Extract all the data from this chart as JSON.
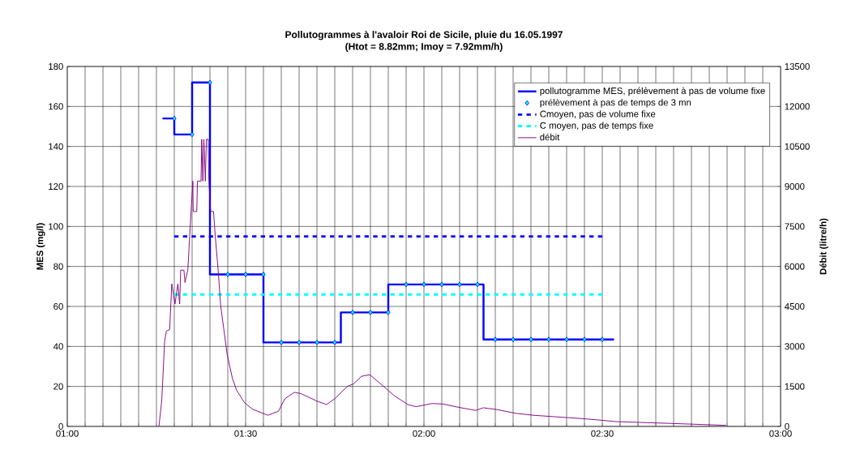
{
  "chart_data": {
    "type": "line",
    "title": "Pollutogrammes à l'avaloir Roi de Sicile, pluie du 16.05.1997",
    "subtitle": "(Htot = 8.82mm; Imoy = 7.92mm/h)",
    "ylabel": "MES (mg/l)",
    "y2label": "Débit (litre/h)",
    "xlim": [
      1,
      3
    ],
    "ylim": [
      0,
      180
    ],
    "y2lim": [
      0,
      13500
    ],
    "xticks": [
      {
        "value": 1,
        "label": "01:00"
      },
      {
        "value": 1.05,
        "label": null
      },
      {
        "value": 1.1,
        "label": null
      },
      {
        "value": 1.15,
        "label": null
      },
      {
        "value": 1.2,
        "label": null
      },
      {
        "value": 1.25,
        "label": null
      },
      {
        "value": 1.3,
        "label": null
      },
      {
        "value": 1.35,
        "label": null
      },
      {
        "value": 1.4,
        "label": null
      },
      {
        "value": 1.45,
        "label": null
      },
      {
        "value": 1.5,
        "label": "01:30"
      },
      {
        "value": 1.55,
        "label": null
      },
      {
        "value": 1.6,
        "label": null
      },
      {
        "value": 1.65,
        "label": null
      },
      {
        "value": 1.7,
        "label": null
      },
      {
        "value": 1.75,
        "label": null
      },
      {
        "value": 1.8,
        "label": null
      },
      {
        "value": 1.85,
        "label": null
      },
      {
        "value": 1.9,
        "label": null
      },
      {
        "value": 1.95,
        "label": null
      },
      {
        "value": 2,
        "label": "02:00"
      },
      {
        "value": 2.05,
        "label": null
      },
      {
        "value": 2.1,
        "label": null
      },
      {
        "value": 2.15,
        "label": null
      },
      {
        "value": 2.2,
        "label": null
      },
      {
        "value": 2.25,
        "label": null
      },
      {
        "value": 2.3,
        "label": null
      },
      {
        "value": 2.35,
        "label": null
      },
      {
        "value": 2.4,
        "label": null
      },
      {
        "value": 2.45,
        "label": null
      },
      {
        "value": 2.5,
        "label": "02:30"
      },
      {
        "value": 2.55,
        "label": null
      },
      {
        "value": 2.6,
        "label": null
      },
      {
        "value": 2.65,
        "label": null
      },
      {
        "value": 2.7,
        "label": null
      },
      {
        "value": 2.75,
        "label": null
      },
      {
        "value": 2.8,
        "label": null
      },
      {
        "value": 2.85,
        "label": null
      },
      {
        "value": 2.9,
        "label": null
      },
      {
        "value": 2.95,
        "label": null
      },
      {
        "value": 3,
        "label": "03:00"
      }
    ],
    "yticks": [
      0,
      20,
      40,
      60,
      80,
      100,
      120,
      140,
      160,
      180
    ],
    "y2ticks": [
      0,
      1500,
      3000,
      4500,
      6000,
      7500,
      9000,
      10500,
      12000,
      13500
    ],
    "grid": true,
    "legend": "top right",
    "series": [
      {
        "name": "pollutogramme MES, prélèvement à pas de volume fixe",
        "type": "step",
        "color": "#0000ff",
        "marker": "none",
        "line_style": "solid",
        "x": [
          1.267,
          1.3,
          1.35,
          1.4,
          1.55,
          1.767,
          1.9,
          2.167,
          2.533
        ],
        "values": [
          154,
          146,
          172,
          76,
          42,
          57,
          71,
          43.5,
          43.5
        ]
      },
      {
        "name": "prélèvement à pas de temps de 3 mn",
        "type": "scatter",
        "color": "#00ffff",
        "marker": "diamond",
        "x": [
          1.3,
          1.35,
          1.4,
          1.45,
          1.5,
          1.55,
          1.6,
          1.65,
          1.7,
          1.75,
          1.8,
          1.85,
          1.9,
          1.95,
          2.0,
          2.05,
          2.1,
          2.15,
          2.2,
          2.25,
          2.3,
          2.35,
          2.4,
          2.45,
          2.5
        ],
        "values": [
          154,
          146,
          172,
          76,
          76,
          76,
          42,
          42,
          42,
          42,
          57,
          57,
          57,
          71,
          71,
          71,
          71,
          71,
          43.5,
          43.5,
          43.5,
          43.5,
          43.5,
          43.5,
          43.5
        ]
      },
      {
        "name": "Cmoyen, pas de volume fixe",
        "type": "line",
        "color": "#0000ff",
        "marker": "none",
        "line_style": "dashed",
        "x": [
          1.3,
          2.5
        ],
        "values": [
          95,
          95
        ]
      },
      {
        "name": "C moyen, pas de temps fixe",
        "type": "line",
        "color": "#00ffff",
        "marker": "none",
        "line_style": "dashed",
        "x": [
          1.3,
          2.5
        ],
        "values": [
          66,
          66
        ]
      },
      {
        "name": "débit",
        "type": "line",
        "color": "#800080",
        "marker": "none",
        "line_style": "solid",
        "axis": "y2",
        "x": [
          1.257,
          1.265,
          1.273,
          1.278,
          1.287,
          1.293,
          1.302,
          1.31,
          1.315,
          1.318,
          1.327,
          1.33,
          1.338,
          1.343,
          1.352,
          1.353,
          1.363,
          1.365,
          1.375,
          1.377,
          1.38,
          1.383,
          1.387,
          1.39,
          1.395,
          1.397,
          1.402,
          1.41,
          1.415,
          1.423,
          1.43,
          1.448,
          1.463,
          1.475,
          1.497,
          1.52,
          1.562,
          1.592,
          1.61,
          1.637,
          1.655,
          1.702,
          1.727,
          1.75,
          1.785,
          1.803,
          1.825,
          1.848,
          1.887,
          1.917,
          1.955,
          1.978,
          2.023,
          2.053,
          2.1,
          2.145,
          2.167,
          2.205,
          2.258,
          2.305,
          2.403,
          2.457,
          2.54,
          2.608,
          2.698,
          2.847
        ],
        "values": [
          0,
          1000,
          3220,
          3580,
          3630,
          5350,
          4590,
          5350,
          4590,
          5860,
          5860,
          5400,
          5860,
          7120,
          9200,
          8060,
          8060,
          9200,
          9200,
          10770,
          9200,
          10770,
          9200,
          10770,
          10770,
          9200,
          8060,
          8060,
          7120,
          5860,
          4540,
          2720,
          1800,
          1350,
          890,
          640,
          420,
          570,
          1040,
          1280,
          1230,
          940,
          820,
          1040,
          1500,
          1600,
          1880,
          1940,
          1500,
          1150,
          820,
          740,
          860,
          840,
          710,
          600,
          700,
          630,
          490,
          420,
          330,
          280,
          180,
          150,
          110,
          40
        ]
      }
    ]
  }
}
